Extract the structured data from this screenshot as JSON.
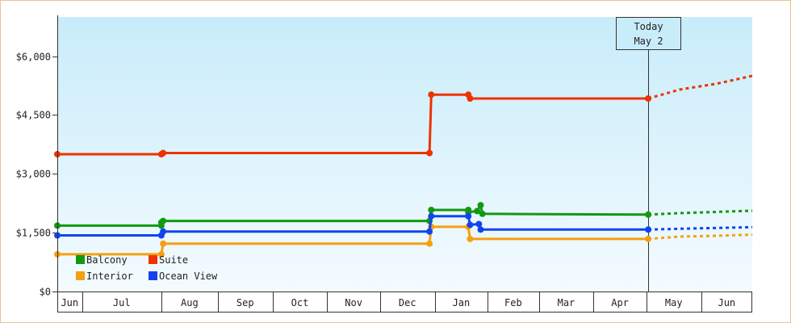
{
  "chart_data": {
    "type": "line",
    "title": "",
    "xlabel": "",
    "ylabel": "",
    "ylim": [
      0,
      7000
    ],
    "y_ticks": [
      {
        "value": 0,
        "label": "$0"
      },
      {
        "value": 1500,
        "label": "$1,500"
      },
      {
        "value": 3000,
        "label": "$3,000"
      },
      {
        "value": 4500,
        "label": "$4,500"
      },
      {
        "value": 6000,
        "label": "$6,000"
      }
    ],
    "x_range": [
      "2025-06-01",
      "2026-06-30"
    ],
    "months": [
      {
        "label": "Jun",
        "start": "2025-06-01",
        "end": "2025-06-15"
      },
      {
        "label": "Jul",
        "start": "2025-06-15",
        "end": "2025-07-30"
      },
      {
        "label": "Aug",
        "start": "2025-07-30",
        "end": "2025-08-31"
      },
      {
        "label": "Sep",
        "start": "2025-08-31",
        "end": "2025-10-01"
      },
      {
        "label": "Oct",
        "start": "2025-10-01",
        "end": "2025-11-01"
      },
      {
        "label": "Nov",
        "start": "2025-11-01",
        "end": "2025-12-01"
      },
      {
        "label": "Dec",
        "start": "2025-12-01",
        "end": "2026-01-01"
      },
      {
        "label": "Jan",
        "start": "2026-01-01",
        "end": "2026-01-31"
      },
      {
        "label": "Feb",
        "start": "2026-01-31",
        "end": "2026-03-01"
      },
      {
        "label": "Mar",
        "start": "2026-03-01",
        "end": "2026-04-01"
      },
      {
        "label": "Apr",
        "start": "2026-04-01",
        "end": "2026-05-01"
      },
      {
        "label": "May",
        "start": "2026-05-01",
        "end": "2026-06-01"
      },
      {
        "label": "Jun",
        "start": "2026-06-01",
        "end": "2026-06-30"
      }
    ],
    "today": {
      "line1": "Today",
      "line2": "May 2",
      "date": "2026-05-02"
    },
    "legend_position": "bottom-left",
    "series": [
      {
        "name": "Balcony",
        "color": "#119911",
        "points": [
          [
            "2025-06-01",
            1680
          ],
          [
            "2025-07-30",
            1680
          ],
          [
            "2025-07-30",
            1760
          ],
          [
            "2025-07-31",
            1800
          ],
          [
            "2025-12-29",
            1800
          ],
          [
            "2025-12-30",
            2080
          ],
          [
            "2026-01-20",
            2080
          ],
          [
            "2026-01-20",
            2020
          ],
          [
            "2026-01-25",
            2050
          ],
          [
            "2026-01-27",
            2200
          ],
          [
            "2026-01-28",
            1980
          ],
          [
            "2026-05-02",
            1960
          ]
        ],
        "projection": [
          [
            "2026-05-02",
            1960
          ],
          [
            "2026-05-20",
            2000
          ],
          [
            "2026-06-10",
            2030
          ],
          [
            "2026-06-30",
            2060
          ]
        ]
      },
      {
        "name": "Suite",
        "color": "#ee3300",
        "points": [
          [
            "2025-06-01",
            3500
          ],
          [
            "2025-07-30",
            3500
          ],
          [
            "2025-07-31",
            3530
          ],
          [
            "2025-12-29",
            3530
          ],
          [
            "2025-12-30",
            5020
          ],
          [
            "2026-01-20",
            5020
          ],
          [
            "2026-01-21",
            4920
          ],
          [
            "2026-05-02",
            4920
          ]
        ],
        "projection": [
          [
            "2026-05-02",
            4920
          ],
          [
            "2026-05-20",
            5150
          ],
          [
            "2026-06-10",
            5300
          ],
          [
            "2026-06-30",
            5500
          ]
        ]
      },
      {
        "name": "Interior",
        "color": "#f5a010",
        "points": [
          [
            "2025-06-01",
            950
          ],
          [
            "2025-07-30",
            950
          ],
          [
            "2025-07-31",
            1220
          ],
          [
            "2025-12-29",
            1220
          ],
          [
            "2025-12-30",
            1650
          ],
          [
            "2026-01-20",
            1650
          ],
          [
            "2026-01-21",
            1340
          ],
          [
            "2026-05-02",
            1340
          ]
        ],
        "projection": [
          [
            "2026-05-02",
            1340
          ],
          [
            "2026-05-20",
            1400
          ],
          [
            "2026-06-10",
            1420
          ],
          [
            "2026-06-30",
            1450
          ]
        ]
      },
      {
        "name": "Ocean View",
        "color": "#1144ee",
        "points": [
          [
            "2025-06-01",
            1430
          ],
          [
            "2025-07-30",
            1430
          ],
          [
            "2025-07-31",
            1530
          ],
          [
            "2025-12-29",
            1530
          ],
          [
            "2025-12-30",
            1920
          ],
          [
            "2026-01-20",
            1920
          ],
          [
            "2026-01-21",
            1700
          ],
          [
            "2026-01-26",
            1720
          ],
          [
            "2026-01-27",
            1580
          ],
          [
            "2026-05-02",
            1580
          ]
        ],
        "projection": [
          [
            "2026-05-02",
            1580
          ],
          [
            "2026-05-20",
            1600
          ],
          [
            "2026-06-10",
            1620
          ],
          [
            "2026-06-30",
            1640
          ]
        ]
      }
    ]
  }
}
